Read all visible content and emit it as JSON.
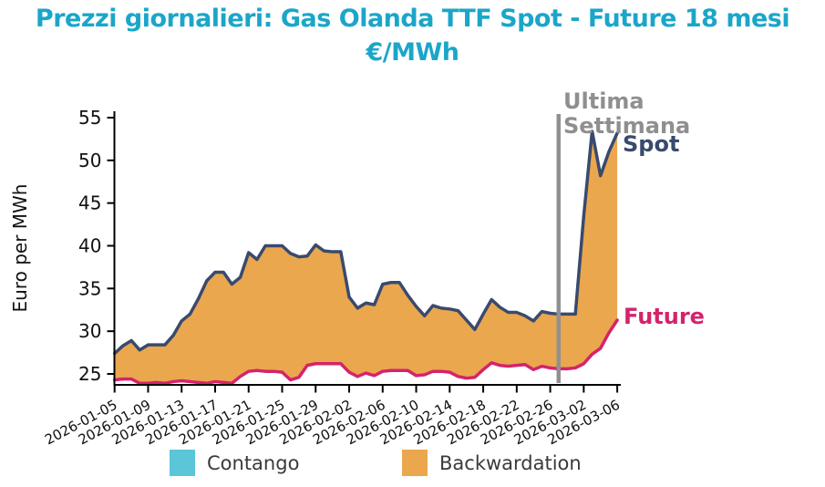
{
  "title": {
    "line1": "Prezzi giornalieri: Gas Olanda TTF Spot - Future 18 mesi",
    "line2": "€/MWh",
    "color": "#1ba6c9"
  },
  "annotations": {
    "vline_label_line1": "Ultima",
    "vline_label_line2": "Settimana",
    "vline_label_color": "#8f8f8f",
    "spot_label": "Spot",
    "spot_label_color": "#394a6d",
    "future_label": "Future",
    "future_label_color": "#d5236b"
  },
  "legend": {
    "items": [
      {
        "label": "Contango",
        "color": "#5bc6d8"
      },
      {
        "label": "Backwardation",
        "color": "#eaa74e"
      }
    ]
  },
  "chart_data": {
    "type": "area",
    "title": "Prezzi giornalieri: Gas Olanda TTF Spot - Future 18 mesi €/MWh",
    "xlabel": "",
    "ylabel": "Euro per MWh",
    "grid": false,
    "legend_position": "bottom",
    "ylim": [
      23.7,
      55.5
    ],
    "y_ticks": [
      25,
      30,
      35,
      40,
      45,
      50,
      55
    ],
    "x_ticklabels": [
      "2026-01-05",
      "2026-01-09",
      "2026-01-13",
      "2026-01-17",
      "2026-01-21",
      "2026-01-25",
      "2026-01-29",
      "2026-02-02",
      "2026-02-06",
      "2026-02-10",
      "2026-02-14",
      "2026-02-18",
      "2026-02-22",
      "2026-02-26",
      "2026-03-02",
      "2026-03-06"
    ],
    "x_tick_every": 4,
    "x": [
      "2026-01-05",
      "2026-01-06",
      "2026-01-07",
      "2026-01-08",
      "2026-01-09",
      "2026-01-10",
      "2026-01-11",
      "2026-01-12",
      "2026-01-13",
      "2026-01-14",
      "2026-01-15",
      "2026-01-16",
      "2026-01-17",
      "2026-01-18",
      "2026-01-19",
      "2026-01-20",
      "2026-01-21",
      "2026-01-22",
      "2026-01-23",
      "2026-01-24",
      "2026-01-25",
      "2026-01-26",
      "2026-01-27",
      "2026-01-28",
      "2026-01-29",
      "2026-01-30",
      "2026-01-31",
      "2026-02-01",
      "2026-02-02",
      "2026-02-03",
      "2026-02-04",
      "2026-02-05",
      "2026-02-06",
      "2026-02-07",
      "2026-02-08",
      "2026-02-09",
      "2026-02-10",
      "2026-02-11",
      "2026-02-12",
      "2026-02-13",
      "2026-02-14",
      "2026-02-15",
      "2026-02-16",
      "2026-02-17",
      "2026-02-18",
      "2026-02-19",
      "2026-02-20",
      "2026-02-21",
      "2026-02-22",
      "2026-02-23",
      "2026-02-24",
      "2026-02-25",
      "2026-02-26",
      "2026-02-27",
      "2026-02-28",
      "2026-03-01",
      "2026-03-02",
      "2026-03-03",
      "2026-03-04",
      "2026-03-05",
      "2026-03-06"
    ],
    "series": [
      {
        "name": "Spot",
        "color": "#394a6d",
        "values": [
          27.4,
          28.3,
          28.9,
          27.8,
          28.4,
          28.4,
          28.4,
          29.5,
          31.2,
          32.0,
          33.8,
          35.9,
          36.9,
          36.9,
          35.5,
          36.3,
          39.2,
          38.4,
          40.0,
          40.0,
          40.0,
          39.1,
          38.7,
          38.8,
          40.1,
          39.4,
          39.3,
          39.3,
          34.0,
          32.7,
          33.3,
          33.1,
          35.5,
          35.7,
          35.7,
          34.2,
          32.9,
          31.8,
          33.0,
          32.7,
          32.6,
          32.4,
          31.3,
          30.2,
          32.0,
          33.7,
          32.8,
          32.2,
          32.2,
          31.8,
          31.2,
          32.3,
          32.1,
          32.0,
          32.0,
          32.0,
          43.5,
          53.4,
          48.2,
          51.0,
          53.2
        ]
      },
      {
        "name": "Future",
        "color": "#d5236b",
        "values": [
          24.3,
          24.4,
          24.4,
          23.9,
          23.9,
          24.0,
          23.9,
          24.1,
          24.2,
          24.1,
          24.0,
          23.9,
          24.1,
          24.0,
          23.9,
          24.7,
          25.3,
          25.4,
          25.3,
          25.3,
          25.2,
          24.3,
          24.6,
          26.0,
          26.2,
          26.2,
          26.2,
          26.2,
          25.2,
          24.7,
          25.1,
          24.8,
          25.3,
          25.4,
          25.4,
          25.4,
          24.8,
          24.9,
          25.3,
          25.3,
          25.2,
          24.7,
          24.5,
          24.6,
          25.5,
          26.3,
          26.0,
          25.9,
          26.0,
          26.1,
          25.5,
          25.9,
          25.7,
          25.6,
          25.6,
          25.7,
          26.2,
          27.3,
          28.0,
          29.8,
          31.3
        ]
      }
    ],
    "fill_between": {
      "meaning": "Backwardation (Spot > Future)",
      "color": "#eaa74e"
    },
    "vline": {
      "x": "2026-02-27",
      "label": "Ultima Settimana",
      "color": "#909090"
    },
    "axis_color": "#000000",
    "tick_label_color": "#111111"
  }
}
